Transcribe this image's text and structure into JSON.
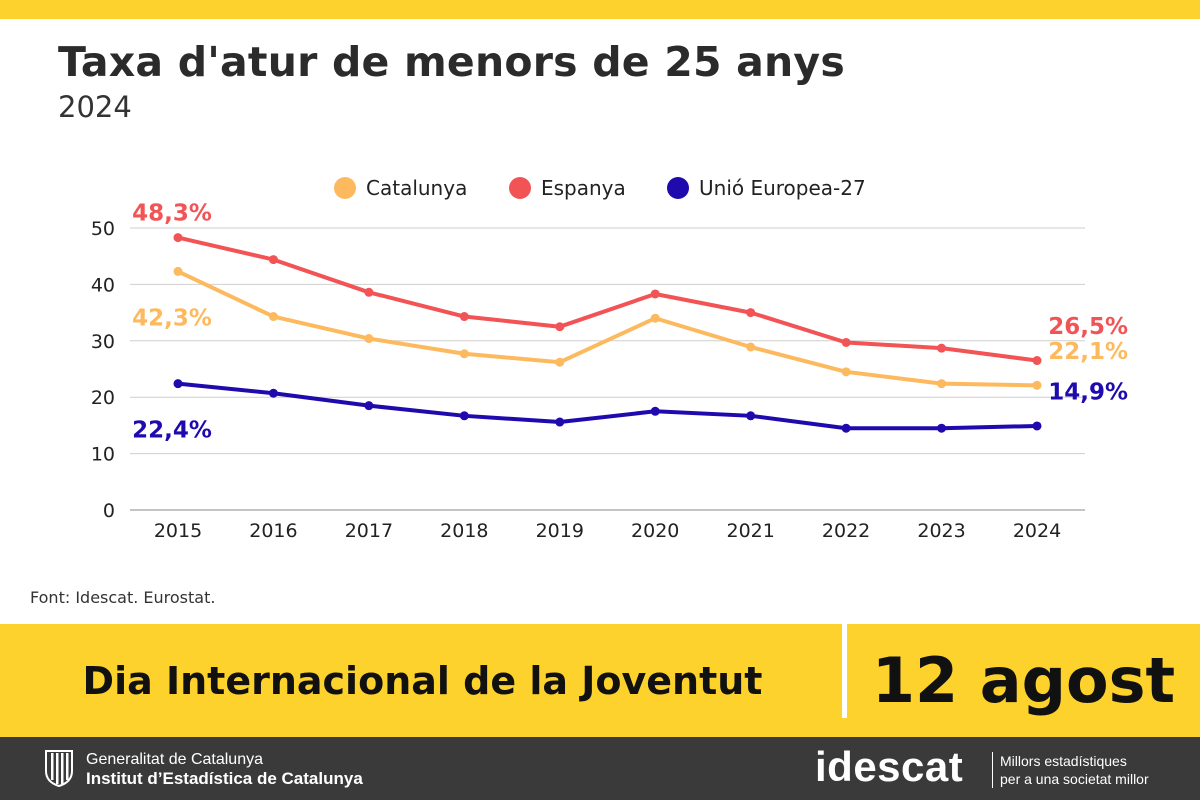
{
  "header": {
    "title": "Taxa d'atur de menors de 25 anys",
    "subtitle": "2024"
  },
  "chart_data": {
    "type": "line",
    "x": [
      "2015",
      "2016",
      "2017",
      "2018",
      "2019",
      "2020",
      "2021",
      "2022",
      "2023",
      "2024"
    ],
    "ylim": [
      0,
      50
    ],
    "yticks": [
      0,
      10,
      20,
      30,
      40,
      50
    ],
    "grid": true,
    "legend_position": "top-center",
    "series": [
      {
        "name": "Catalunya",
        "color": "#FDB95E",
        "values": [
          42.3,
          34.3,
          30.4,
          27.7,
          26.2,
          34.0,
          28.9,
          24.5,
          22.4,
          22.1
        ],
        "start_label": "42,3%",
        "end_label": "22,1%"
      },
      {
        "name": "Espanya",
        "color": "#F25456",
        "values": [
          48.3,
          44.4,
          38.6,
          34.3,
          32.5,
          38.3,
          35.0,
          29.7,
          28.7,
          26.5
        ],
        "start_label": "48,3%",
        "end_label": "26,5%"
      },
      {
        "name": "Unió Europea-27",
        "color": "#1F0AAE",
        "values": [
          22.4,
          20.7,
          18.5,
          16.7,
          15.6,
          17.5,
          16.7,
          14.5,
          14.5,
          14.9
        ],
        "start_label": "22,4%",
        "end_label": "14,9%"
      }
    ]
  },
  "source": "Font: Idescat. Eurostat.",
  "banner": {
    "event": "Dia Internacional de la Joventut",
    "date": "12 agost"
  },
  "footer": {
    "gencat_line1": "Generalitat de Catalunya",
    "gencat_line2": "Institut d’Estadística de Catalunya",
    "idescat_logo": "idescat",
    "tagline_line1": "Millors estadístiques",
    "tagline_line2": "per a una societat millor"
  },
  "colors": {
    "accent_yellow": "#FDD22C",
    "footer_bg": "#3a3a3a"
  }
}
